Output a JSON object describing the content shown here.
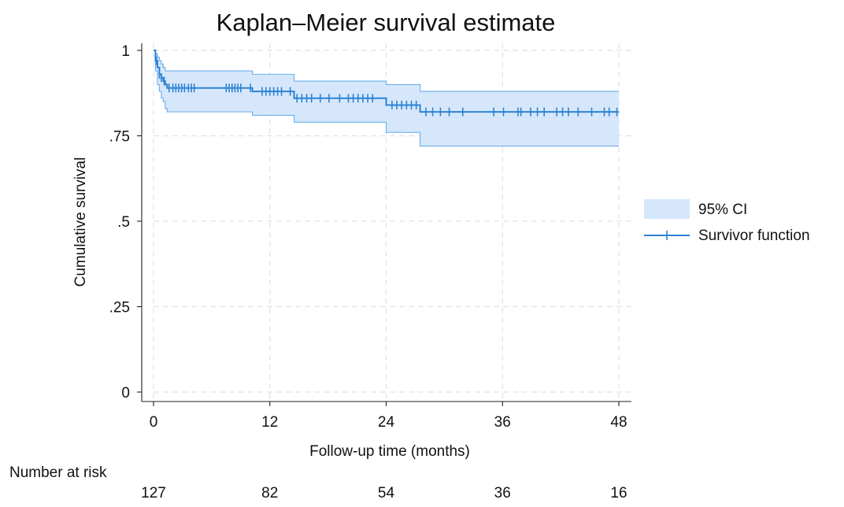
{
  "chart_data": {
    "type": "line",
    "title": "Kaplan–Meier survival estimate",
    "xlabel": "Follow-up time (months)",
    "ylabel": "Cumulative survival",
    "xlim": [
      0,
      48
    ],
    "ylim": [
      0,
      1
    ],
    "x_ticks": [
      0,
      12,
      24,
      36,
      48
    ],
    "y_ticks": [
      0,
      0.25,
      0.5,
      0.75,
      1
    ],
    "y_tick_labels": [
      "0",
      ".25",
      ".5",
      ".75",
      "1"
    ],
    "grid": true,
    "legend_position": "right",
    "colors": {
      "survival": "#2d83d4",
      "ci_fill": "#d6e7fb",
      "ci_edge": "#6aaeea"
    },
    "series": [
      {
        "name": "Survivor function",
        "kind": "step",
        "x": [
          0,
          0.2,
          0.4,
          0.6,
          0.8,
          1.0,
          1.2,
          1.4,
          10.2,
          14.5,
          24.0,
          27.5,
          48
        ],
        "y": [
          1.0,
          0.97,
          0.95,
          0.93,
          0.92,
          0.91,
          0.9,
          0.89,
          0.88,
          0.86,
          0.84,
          0.82,
          0.82
        ],
        "censored_x": [
          0.3,
          0.6,
          0.8,
          1.1,
          1.6,
          2.0,
          2.3,
          2.6,
          2.9,
          3.2,
          3.6,
          3.9,
          4.2,
          7.5,
          7.8,
          8.1,
          8.4,
          8.7,
          9.0,
          10.0,
          11.2,
          11.6,
          12.0,
          12.4,
          12.8,
          13.2,
          14.1,
          14.8,
          15.3,
          15.8,
          16.3,
          17.2,
          18.1,
          19.2,
          20.1,
          20.6,
          21.1,
          21.6,
          22.1,
          22.6,
          24.6,
          25.1,
          25.6,
          26.1,
          26.6,
          27.1,
          28.1,
          28.8,
          29.6,
          30.5,
          31.9,
          35.1,
          36.1,
          37.6,
          37.9,
          38.9,
          39.6,
          40.3,
          41.6,
          42.2,
          42.8,
          43.8,
          45.2,
          46.5,
          47.0,
          47.8
        ]
      },
      {
        "name": "95% CI",
        "kind": "band",
        "x": [
          0,
          0.2,
          0.4,
          0.6,
          0.8,
          1.0,
          1.2,
          1.4,
          10.2,
          14.5,
          24.0,
          27.5,
          48
        ],
        "lower": [
          1.0,
          0.94,
          0.9,
          0.88,
          0.86,
          0.85,
          0.83,
          0.82,
          0.81,
          0.79,
          0.76,
          0.72,
          0.72
        ],
        "upper": [
          1.0,
          0.99,
          0.98,
          0.97,
          0.96,
          0.95,
          0.94,
          0.94,
          0.93,
          0.91,
          0.9,
          0.88,
          0.88
        ]
      }
    ],
    "number_at_risk": {
      "label": "Number at risk",
      "times": [
        0,
        12,
        24,
        36,
        48
      ],
      "counts": [
        127,
        82,
        54,
        36,
        16
      ]
    }
  }
}
